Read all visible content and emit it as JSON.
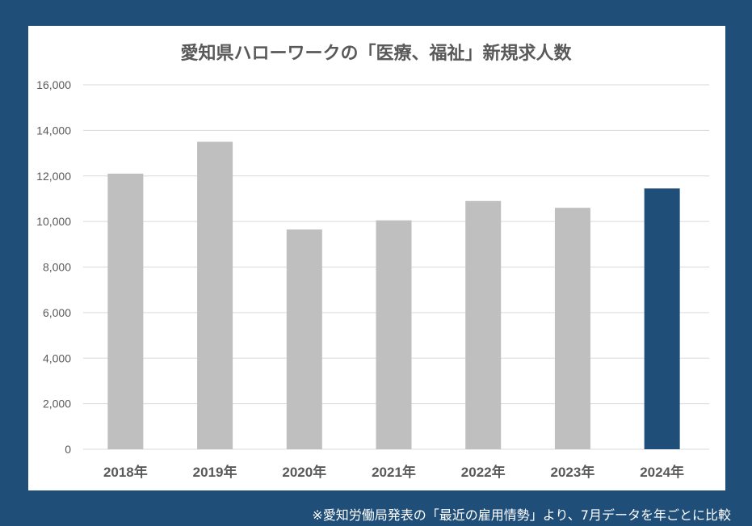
{
  "chart_data": {
    "type": "bar",
    "title": "愛知県ハローワークの「医療、福祉」新規求人数",
    "categories": [
      "2018年",
      "2019年",
      "2020年",
      "2021年",
      "2022年",
      "2023年",
      "2024年"
    ],
    "values": [
      12100,
      13500,
      9650,
      10050,
      10900,
      10600,
      11450
    ],
    "ylim": [
      0,
      16000
    ],
    "yticks": [
      "0",
      "2,000",
      "4,000",
      "6,000",
      "8,000",
      "10,000",
      "12,000",
      "14,000",
      "16,000"
    ],
    "grid": true,
    "xlabel": "",
    "ylabel": "",
    "colors": {
      "default": "#bfbfbf",
      "highlight": "#1f4e79",
      "background": "#1f4e79"
    },
    "highlight_index": 6
  },
  "note": "※愛知労働局発表の「最近の雇用情勢」より、7月データを年ごとに比較"
}
